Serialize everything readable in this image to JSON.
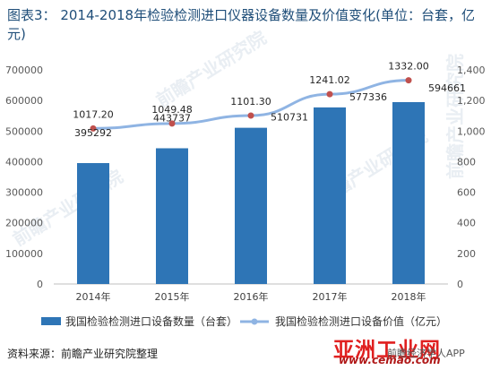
{
  "header": {
    "label": "图表3：",
    "title": "2014-2018年检验检测进口仪器设备数量及价值变化(单位：台套，亿元)"
  },
  "chart_data": {
    "type": "bar+line",
    "categories": [
      "2014年",
      "2015年",
      "2016年",
      "2017年",
      "2018年"
    ],
    "series": [
      {
        "name": "我国检验检测进口设备数量（台套）",
        "type": "bar",
        "axis": "left",
        "color": "#2e75b6",
        "values": [
          395292,
          443737,
          510731,
          577336,
          594661
        ],
        "labels": [
          "395292",
          "443737",
          "510731",
          "577336",
          "594661"
        ]
      },
      {
        "name": "我国检验检测进口设备价值（亿元）",
        "type": "line",
        "axis": "right",
        "color": "#8fb4e3",
        "marker_color": "#c0504d",
        "values": [
          1017.2,
          1049.48,
          1101.3,
          1241.02,
          1332.0
        ],
        "labels": [
          "1017.20",
          "1049.48",
          "1101.30",
          "1241.02",
          "1332.00"
        ]
      }
    ],
    "y_left": {
      "min": 0,
      "max": 700000,
      "ticks": [
        "0",
        "100000",
        "200000",
        "300000",
        "400000",
        "500000",
        "600000",
        "700000"
      ]
    },
    "y_right": {
      "min": 0,
      "max": 1400,
      "ticks": [
        "0",
        "200",
        "400",
        "600",
        "800",
        "1,000",
        "1,200",
        "1,400"
      ]
    },
    "grid": false,
    "legend_position": "bottom"
  },
  "legend": {
    "bar_label": "我国检验检测进口设备数量（台套）",
    "line_label": "我国检验检测进口设备价值（亿元）"
  },
  "footer": {
    "source": "资料来源：前瞻产业研究院整理"
  },
  "watermarks": {
    "brand": "亚洲工业网",
    "url": "www.cemao.com",
    "app": "前瞻经济学人APP",
    "logo_text": "前瞻产业研究院"
  }
}
